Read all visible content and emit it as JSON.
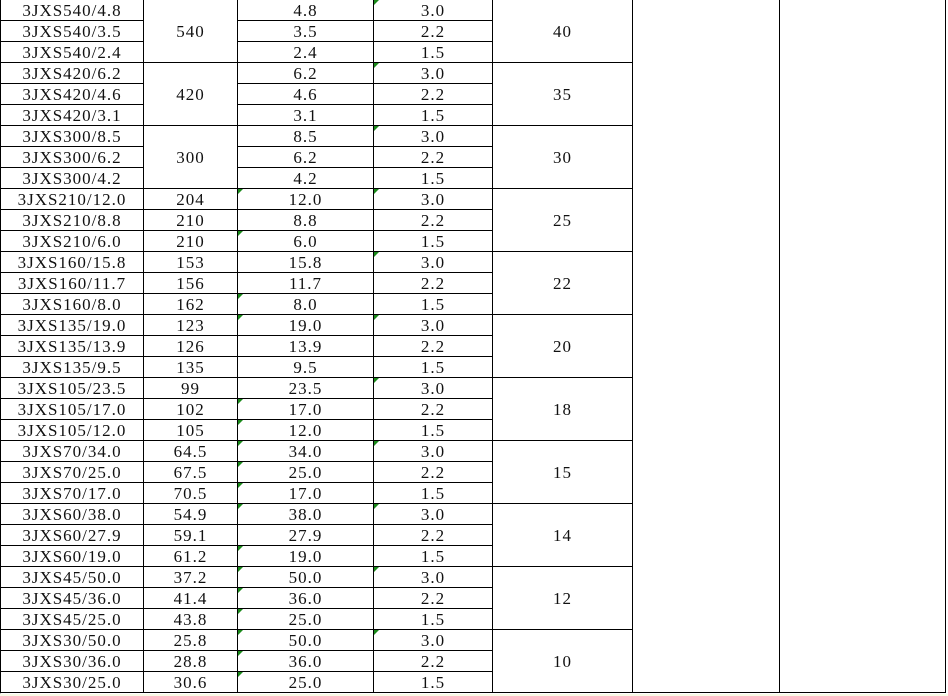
{
  "colors": {
    "grid": "#000000",
    "flag": "#1a8a1a"
  },
  "groups": [
    {
      "rows": [
        [
          "3JXS540/4.8",
          "4.8",
          "3.0"
        ],
        [
          "3JXS540/3.5",
          "3.5",
          "2.2"
        ],
        [
          "3JXS540/2.4",
          "2.4",
          "1.5"
        ]
      ],
      "speed_merged": "540",
      "speeds": null,
      "col5": "40",
      "flags3": [
        false,
        false,
        false
      ],
      "flags4": [
        true,
        false,
        false
      ]
    },
    {
      "rows": [
        [
          "3JXS420/6.2",
          "6.2",
          "3.0"
        ],
        [
          "3JXS420/4.6",
          "4.6",
          "2.2"
        ],
        [
          "3JXS420/3.1",
          "3.1",
          "1.5"
        ]
      ],
      "speed_merged": "420",
      "speeds": null,
      "col5": "35",
      "flags3": [
        false,
        false,
        false
      ],
      "flags4": [
        true,
        false,
        false
      ]
    },
    {
      "rows": [
        [
          "3JXS300/8.5",
          "8.5",
          "3.0"
        ],
        [
          "3JXS300/6.2",
          "6.2",
          "2.2"
        ],
        [
          "3JXS300/4.2",
          "4.2",
          "1.5"
        ]
      ],
      "speed_merged": "300",
      "speeds": null,
      "col5": "30",
      "flags3": [
        false,
        false,
        false
      ],
      "flags4": [
        true,
        false,
        false
      ]
    },
    {
      "rows": [
        [
          "3JXS210/12.0",
          "12.0",
          "3.0"
        ],
        [
          "3JXS210/8.8",
          "8.8",
          "2.2"
        ],
        [
          "3JXS210/6.0",
          "6.0",
          "1.5"
        ]
      ],
      "speeds": [
        "204",
        "210",
        "210"
      ],
      "col5": "25",
      "flags3": [
        true,
        false,
        true
      ],
      "flags4": [
        true,
        false,
        false
      ]
    },
    {
      "rows": [
        [
          "3JXS160/15.8",
          "15.8",
          "3.0"
        ],
        [
          "3JXS160/11.7",
          "11.7",
          "2.2"
        ],
        [
          "3JXS160/8.0",
          "8.0",
          "1.5"
        ]
      ],
      "speeds": [
        "153",
        "156",
        "162"
      ],
      "col5": "22",
      "flags3": [
        false,
        false,
        true
      ],
      "flags4": [
        true,
        false,
        false
      ]
    },
    {
      "rows": [
        [
          "3JXS135/19.0",
          "19.0",
          "3.0"
        ],
        [
          "3JXS135/13.9",
          "13.9",
          "2.2"
        ],
        [
          "3JXS135/9.5",
          "9.5",
          "1.5"
        ]
      ],
      "speeds": [
        "123",
        "126",
        "135"
      ],
      "col5": "20",
      "flags3": [
        true,
        false,
        false
      ],
      "flags4": [
        true,
        false,
        false
      ]
    },
    {
      "rows": [
        [
          "3JXS105/23.5",
          "23.5",
          "3.0"
        ],
        [
          "3JXS105/17.0",
          "17.0",
          "2.2"
        ],
        [
          "3JXS105/12.0",
          "12.0",
          "1.5"
        ]
      ],
      "speeds": [
        "99",
        "102",
        "105"
      ],
      "col5": "18",
      "flags3": [
        false,
        true,
        true
      ],
      "flags4": [
        true,
        false,
        false
      ]
    },
    {
      "rows": [
        [
          "3JXS70/34.0",
          "34.0",
          "3.0"
        ],
        [
          "3JXS70/25.0",
          "25.0",
          "2.2"
        ],
        [
          "3JXS70/17.0",
          "17.0",
          "1.5"
        ]
      ],
      "speeds": [
        "64.5",
        "67.5",
        "70.5"
      ],
      "col5": "15",
      "flags3": [
        true,
        true,
        true
      ],
      "flags4": [
        true,
        false,
        false
      ]
    },
    {
      "rows": [
        [
          "3JXS60/38.0",
          "38.0",
          "3.0"
        ],
        [
          "3JXS60/27.9",
          "27.9",
          "2.2"
        ],
        [
          "3JXS60/19.0",
          "19.0",
          "1.5"
        ]
      ],
      "speeds": [
        "54.9",
        "59.1",
        "61.2"
      ],
      "col5": "14",
      "flags3": [
        true,
        false,
        true
      ],
      "flags4": [
        true,
        false,
        false
      ]
    },
    {
      "rows": [
        [
          "3JXS45/50.0",
          "50.0",
          "3.0"
        ],
        [
          "3JXS45/36.0",
          "36.0",
          "2.2"
        ],
        [
          "3JXS45/25.0",
          "25.0",
          "1.5"
        ]
      ],
      "speeds": [
        "37.2",
        "41.4",
        "43.8"
      ],
      "col5": "12",
      "flags3": [
        true,
        true,
        true
      ],
      "flags4": [
        true,
        false,
        false
      ]
    },
    {
      "rows": [
        [
          "3JXS30/50.0",
          "50.0",
          "3.0"
        ],
        [
          "3JXS30/36.0",
          "36.0",
          "2.2"
        ],
        [
          "3JXS30/25.0",
          "25.0",
          "1.5"
        ]
      ],
      "speeds": [
        "25.8",
        "28.8",
        "30.6"
      ],
      "col5": "10",
      "flags3": [
        true,
        true,
        true
      ],
      "flags4": [
        true,
        false,
        false
      ]
    }
  ]
}
